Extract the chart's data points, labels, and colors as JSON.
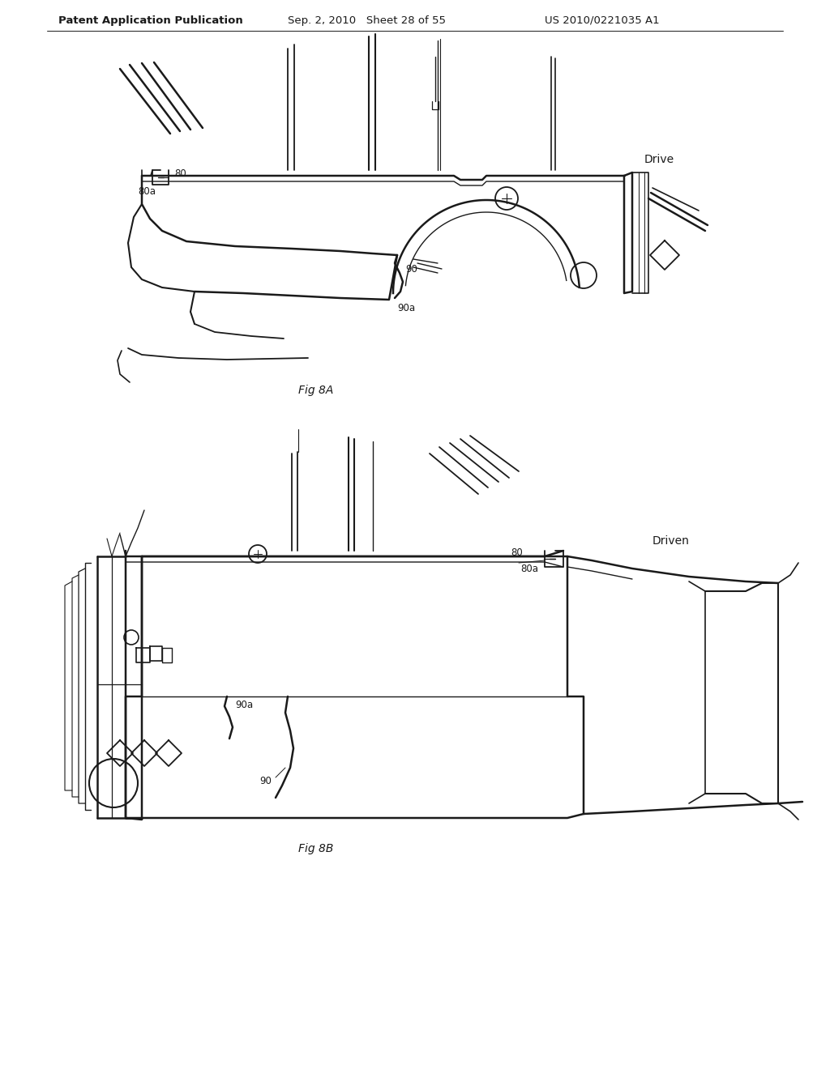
{
  "bg_color": "#ffffff",
  "header_left": "Patent Application Publication",
  "header_mid": "Sep. 2, 2010   Sheet 28 of 55",
  "header_right": "US 2010/0221035 A1",
  "fig8a_label": "Fig 8A",
  "fig8b_label": "Fig 8B",
  "drive_label": "Drive",
  "driven_label": "Driven",
  "ref_80": "80",
  "ref_80a": "80a",
  "ref_90": "90",
  "ref_90a": "90a",
  "line_color": "#1a1a1a",
  "text_color": "#1a1a1a",
  "header_fontsize": 9.5,
  "label_fontsize": 8.5,
  "fig_label_fontsize": 10
}
